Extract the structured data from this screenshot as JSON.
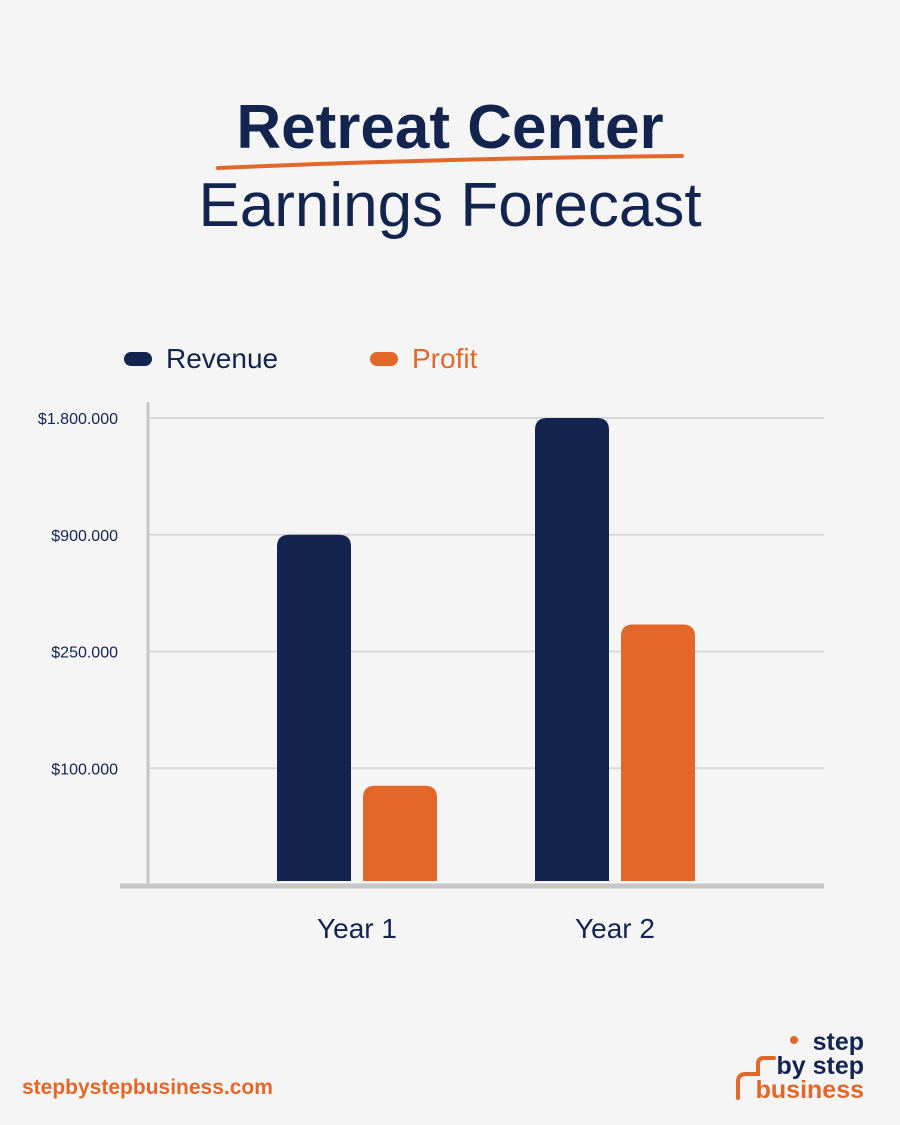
{
  "title": {
    "line1": "Retreat Center",
    "line2": "Earnings Forecast"
  },
  "colors": {
    "navy": "#13244f",
    "orange": "#e4672a",
    "grid": "#d9d9d9",
    "axis": "#c7c7c7",
    "background": "#f5f5f5"
  },
  "chart_data": {
    "type": "bar",
    "categories": [
      "Year 1",
      "Year 2"
    ],
    "series": [
      {
        "name": "Revenue",
        "values": [
          900000,
          1800000
        ],
        "color": "#13244f"
      },
      {
        "name": "Profit",
        "values": [
          85000,
          400000
        ],
        "color": "#e4672a"
      }
    ],
    "y_ticks": [
      100000,
      250000,
      900000,
      1800000
    ],
    "y_tick_labels": [
      "$100.000",
      "$250.000",
      "$900.000",
      "$1.800.000"
    ],
    "y_scale": "piecewise-by-tick",
    "ylim": [
      0,
      1800000
    ],
    "grid": true,
    "legend": "top-left",
    "xlabel": "",
    "ylabel": ""
  },
  "footer": {
    "url": "stepbystepbusiness.com",
    "logo_line1": "step",
    "logo_line2": "by step",
    "logo_line3": "business"
  }
}
